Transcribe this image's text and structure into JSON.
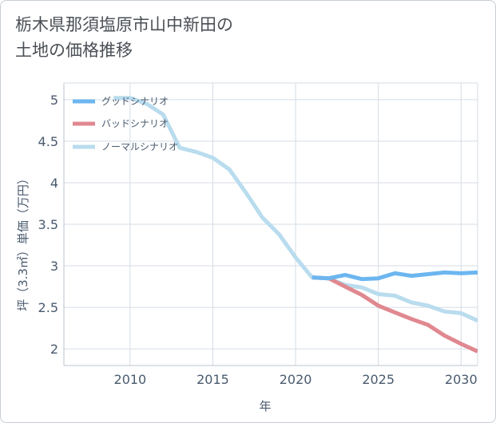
{
  "chart_data": {
    "type": "line",
    "title": "栃木県那須塩原市山中新田の\n土地の価格推移",
    "xlabel": "年",
    "ylabel": "坪（3.3㎡）単価（万円）",
    "xlim": [
      2006,
      2031
    ],
    "ylim": [
      1.8,
      5.2
    ],
    "x_ticks": [
      2010,
      2015,
      2020,
      2025,
      2030
    ],
    "y_ticks": [
      2,
      2.5,
      3,
      3.5,
      4,
      4.5,
      5
    ],
    "y_tick_labels": [
      "2",
      "2.5",
      "3",
      "3.5",
      "4",
      "4.5",
      "5"
    ],
    "grid": true,
    "legend_position": "top-left",
    "series": [
      {
        "name": "グッドシナリオ",
        "color": "#6cb6f0",
        "x": [
          2021,
          2022,
          2023,
          2024,
          2025,
          2026,
          2027,
          2028,
          2029,
          2030,
          2031
        ],
        "values": [
          2.86,
          2.85,
          2.89,
          2.84,
          2.85,
          2.91,
          2.88,
          2.9,
          2.92,
          2.91,
          2.92
        ]
      },
      {
        "name": "バッドシナリオ",
        "color": "#e08890",
        "x": [
          2021,
          2022,
          2023,
          2024,
          2025,
          2026,
          2027,
          2028,
          2029,
          2030,
          2031
        ],
        "values": [
          2.86,
          2.85,
          2.75,
          2.65,
          2.52,
          2.44,
          2.36,
          2.29,
          2.16,
          2.06,
          1.97
        ]
      },
      {
        "name": "ノーマルシナリオ",
        "color": "#b9dcee",
        "x": [
          2009,
          2010,
          2011,
          2012,
          2013,
          2014,
          2015,
          2016,
          2017,
          2018,
          2019,
          2020,
          2021,
          2022,
          2023,
          2024,
          2025,
          2026,
          2027,
          2028,
          2029,
          2030,
          2031
        ],
        "values": [
          5.02,
          5.02,
          4.95,
          4.82,
          4.42,
          4.37,
          4.3,
          4.16,
          3.88,
          3.58,
          3.38,
          3.1,
          2.86,
          2.85,
          2.77,
          2.74,
          2.66,
          2.64,
          2.56,
          2.52,
          2.45,
          2.43,
          2.34
        ]
      }
    ]
  }
}
